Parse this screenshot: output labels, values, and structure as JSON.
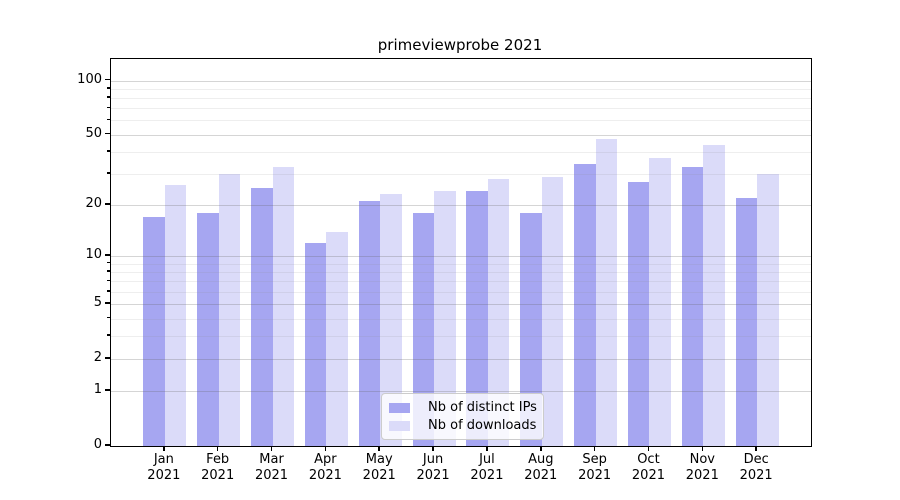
{
  "chart_data": {
    "type": "bar",
    "title": "primeviewprobe 2021",
    "categories": [
      "Jan 2021",
      "Feb 2021",
      "Mar 2021",
      "Apr 2021",
      "May 2021",
      "Jun 2021",
      "Jul 2021",
      "Aug 2021",
      "Sep 2021",
      "Oct 2021",
      "Nov 2021",
      "Dec 2021"
    ],
    "series": [
      {
        "name": "Nb of distinct IPs",
        "color": "#a6a6f1",
        "values": [
          17,
          18,
          25,
          12,
          21,
          18,
          24,
          18,
          34,
          27,
          33,
          22
        ]
      },
      {
        "name": "Nb of downloads",
        "color": "#dbdbf9",
        "values": [
          26,
          30,
          33,
          14,
          23,
          24,
          28,
          29,
          47,
          37,
          44,
          30
        ]
      }
    ],
    "xlabel": "",
    "ylabel": "",
    "yscale": "log1p",
    "ylim": [
      0,
      131
    ],
    "yticks": [
      0,
      1,
      2,
      5,
      10,
      20,
      50,
      100
    ],
    "yticks_minor": [
      3,
      4,
      6,
      7,
      8,
      9,
      30,
      40,
      60,
      70,
      80,
      90
    ],
    "grid": true,
    "legend_position": "lower center"
  }
}
